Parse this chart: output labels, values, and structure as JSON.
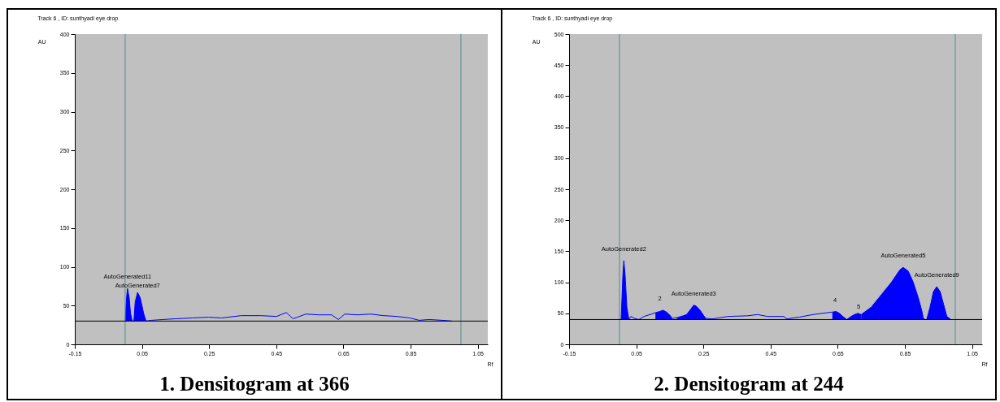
{
  "chart_data": [
    {
      "type": "line",
      "title": "Track  6 , ID: sunthyadi eye drop",
      "xlabel": "Rf",
      "ylabel": "AU",
      "xlim": [
        -0.15,
        1.08
      ],
      "xticks": [
        -0.15,
        0.05,
        0.25,
        0.45,
        0.65,
        0.85,
        1.05
      ],
      "ylim": [
        0,
        400
      ],
      "yticks": [
        0,
        50,
        100,
        150,
        200,
        250,
        300,
        350,
        400
      ],
      "series": [
        {
          "color": "#0000ff",
          "x": [
            0.0,
            0.004,
            0.007,
            0.012,
            0.016,
            0.021,
            0.026,
            0.03,
            0.037,
            0.045,
            0.055,
            0.062,
            0.079,
            0.113,
            0.151,
            0.2,
            0.248,
            0.287,
            0.345,
            0.403,
            0.451,
            0.48,
            0.5,
            0.538,
            0.577,
            0.615,
            0.635,
            0.654,
            0.693,
            0.731,
            0.77,
            0.809,
            0.847,
            0.876,
            0.905,
            0.944,
            0.973
          ],
          "values": [
            30,
            60,
            72,
            60,
            40,
            30,
            30,
            55,
            67,
            60,
            40,
            30,
            31,
            32,
            33,
            34,
            35,
            34,
            37,
            37,
            36,
            41,
            33,
            39,
            38,
            38,
            32,
            39,
            38,
            39,
            37,
            36,
            34,
            31,
            32,
            31,
            30
          ]
        },
        {
          "type": "area",
          "color": "#0000ff",
          "x": [
            0.0,
            0.004,
            0.007,
            0.012,
            0.016,
            0.021
          ],
          "values": [
            30,
            60,
            72,
            60,
            40,
            30
          ]
        },
        {
          "type": "area",
          "color": "#0000ff",
          "x": [
            0.026,
            0.03,
            0.037,
            0.045,
            0.055,
            0.062
          ],
          "values": [
            30,
            55,
            67,
            60,
            40,
            30
          ]
        }
      ],
      "ref_lines": [
        {
          "axis": "x",
          "value": 0.0,
          "color": "#4f8f8f"
        },
        {
          "axis": "x",
          "value": 1.0,
          "color": "#4f8f8f"
        },
        {
          "axis": "y",
          "value": 30,
          "color": "#000000"
        }
      ],
      "annotations": [
        "1. Densitogram at 366",
        {
          "text": "AutoGenerated11",
          "x": 0.007,
          "y": 72
        },
        {
          "text": "AutoGenerated7",
          "x": 0.037,
          "y": 67
        }
      ]
    },
    {
      "type": "line",
      "title": "Track  6 , ID: sunthyadi eye drop",
      "xlabel": "Rf",
      "ylabel": "AU",
      "xlim": [
        -0.15,
        1.08
      ],
      "xticks": [
        -0.15,
        0.05,
        0.25,
        0.45,
        0.65,
        0.85,
        1.05
      ],
      "ylim": [
        0,
        500
      ],
      "yticks": [
        0,
        50,
        100,
        150,
        200,
        250,
        300,
        350,
        400,
        450,
        500
      ],
      "series": [
        {
          "color": "#0000ff",
          "x": [
            0.005,
            0.01,
            0.013,
            0.017,
            0.022,
            0.028,
            0.034,
            0.044,
            0.058,
            0.073,
            0.097,
            0.107,
            0.12,
            0.13,
            0.14,
            0.15,
            0.157,
            0.16,
            0.17,
            0.19,
            0.2,
            0.21,
            0.221,
            0.228,
            0.24,
            0.25,
            0.257,
            0.276,
            0.324,
            0.382,
            0.411,
            0.44,
            0.489,
            0.499,
            0.537,
            0.576,
            0.605,
            0.634,
            0.645,
            0.655,
            0.665,
            0.677,
            0.69,
            0.7,
            0.71,
            0.72,
            0.75,
            0.78,
            0.81,
            0.835,
            0.845,
            0.86,
            0.875,
            0.89,
            0.9,
            0.905,
            0.91,
            0.915,
            0.925,
            0.935,
            0.945,
            0.955,
            0.965,
            0.975,
            0.987
          ],
          "values": [
            40,
            110,
            135,
            110,
            60,
            40,
            45,
            42,
            40,
            45,
            49,
            51,
            53,
            55,
            52,
            47,
            42,
            42,
            43,
            46,
            48,
            55,
            63,
            62,
            55,
            47,
            42,
            41,
            45,
            46,
            48,
            45,
            45,
            41,
            44,
            48,
            50,
            52,
            53,
            50,
            45,
            40,
            45,
            48,
            50,
            48,
            60,
            80,
            100,
            120,
            124,
            118,
            100,
            75,
            55,
            42,
            40,
            40,
            60,
            85,
            93,
            85,
            65,
            45,
            40
          ]
        },
        {
          "type": "area",
          "color": "#0000ff",
          "x": [
            0.005,
            0.01,
            0.013,
            0.017,
            0.022,
            0.028
          ],
          "values": [
            40,
            110,
            135,
            110,
            60,
            40
          ]
        },
        {
          "type": "area",
          "color": "#0000ff",
          "x": [
            0.107,
            0.12,
            0.13,
            0.14,
            0.15,
            0.157
          ],
          "values": [
            51,
            53,
            55,
            52,
            47,
            42
          ]
        },
        {
          "type": "area",
          "color": "#0000ff",
          "x": [
            0.17,
            0.19,
            0.2,
            0.21,
            0.221,
            0.228,
            0.24,
            0.25,
            0.257
          ],
          "values": [
            42,
            46,
            48,
            55,
            63,
            62,
            55,
            47,
            42
          ]
        },
        {
          "type": "area",
          "color": "#0000ff",
          "x": [
            0.634,
            0.645,
            0.655,
            0.665,
            0.677
          ],
          "values": [
            52,
            53,
            50,
            45,
            40
          ]
        },
        {
          "type": "area",
          "color": "#0000ff",
          "x": [
            0.677,
            0.69,
            0.7,
            0.71,
            0.72
          ],
          "values": [
            40,
            45,
            48,
            50,
            48
          ]
        },
        {
          "type": "area",
          "color": "#0000ff",
          "x": [
            0.72,
            0.75,
            0.78,
            0.81,
            0.835,
            0.845,
            0.86,
            0.875,
            0.89,
            0.9,
            0.905,
            0.91
          ],
          "values": [
            48,
            60,
            80,
            100,
            120,
            124,
            118,
            100,
            75,
            55,
            42,
            40
          ]
        },
        {
          "type": "area",
          "color": "#0000ff",
          "x": [
            0.915,
            0.925,
            0.935,
            0.945,
            0.955,
            0.965,
            0.975,
            0.987
          ],
          "values": [
            40,
            60,
            85,
            93,
            85,
            65,
            45,
            40
          ]
        }
      ],
      "ref_lines": [
        {
          "axis": "x",
          "value": 0.0,
          "color": "#4f8f8f"
        },
        {
          "axis": "x",
          "value": 1.0,
          "color": "#4f8f8f"
        },
        {
          "axis": "y",
          "value": 40,
          "color": "#000000"
        }
      ],
      "annotations": [
        "2. Densitogram at 244",
        {
          "text": "AutoGenerated2",
          "x": 0.013,
          "y": 135
        },
        {
          "text": "2",
          "x": 0.12,
          "y": 55
        },
        {
          "text": "AutoGenerated3",
          "x": 0.221,
          "y": 63
        },
        {
          "text": "4",
          "x": 0.642,
          "y": 53
        },
        {
          "text": "5",
          "x": 0.712,
          "y": 50
        },
        {
          "text": "AutoGenerated5",
          "x": 0.845,
          "y": 124
        },
        {
          "text": "AutoGenerated9",
          "x": 0.945,
          "y": 93
        }
      ]
    }
  ]
}
